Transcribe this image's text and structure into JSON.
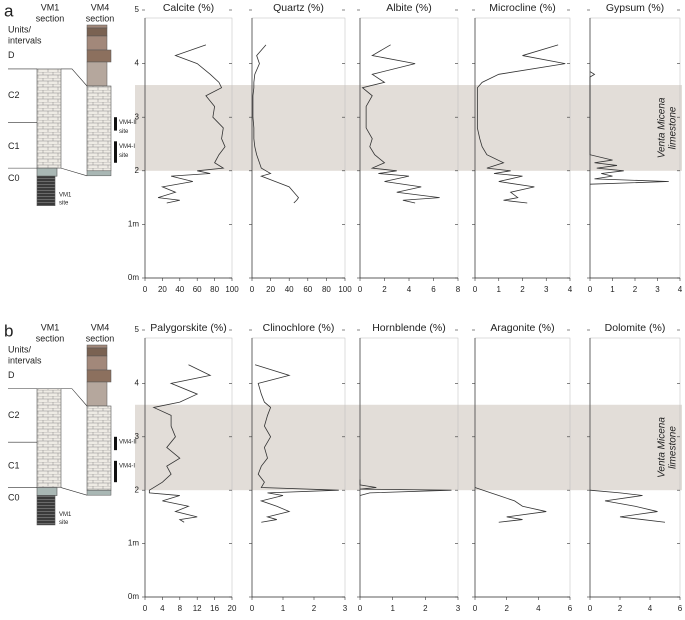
{
  "panels": [
    {
      "letter": "a",
      "sections": [
        [
          "VM1",
          "section"
        ],
        [
          "VM4",
          "section"
        ]
      ],
      "units_label": [
        "Units/",
        "intervals"
      ],
      "units": [
        "D",
        "C2",
        "C1",
        "C0"
      ],
      "sites": [
        [
          "VM4-II",
          "site"
        ],
        [
          "VM4-I",
          "site"
        ],
        [
          "VM1",
          "site"
        ]
      ],
      "shaded_ylim": [
        2.0,
        3.6
      ],
      "annotation": [
        "Venta Micena",
        "limestone"
      ]
    },
    {
      "letter": "b",
      "sections": [
        [
          "VM1",
          "section"
        ],
        [
          "VM4",
          "section"
        ]
      ],
      "units_label": [
        "Units/",
        "intervals"
      ],
      "units": [
        "D",
        "C2",
        "C1",
        "C0"
      ],
      "sites": [
        [
          "VM4-II"
        ],
        [
          "VM4-I"
        ],
        [
          "VM1",
          "site"
        ]
      ],
      "shaded_ylim": [
        2.0,
        3.6
      ],
      "annotation": [
        "Venta Micena",
        "limestone"
      ]
    }
  ],
  "chart_data": [
    {
      "type": "line",
      "title": "Calcite (%)",
      "color": "#333333",
      "xlim": [
        0,
        100
      ],
      "xticks": [
        0,
        20,
        40,
        60,
        80,
        100
      ],
      "ylim": [
        0,
        5
      ],
      "yticks": [
        {
          "value": 0,
          "label": "0m"
        },
        {
          "value": 1,
          "label": "1m"
        },
        2,
        3,
        4,
        5
      ],
      "y": [
        4.35,
        4.15,
        4.0,
        3.8,
        3.65,
        3.55,
        3.4,
        3.2,
        3.0,
        2.8,
        2.6,
        2.45,
        2.3,
        2.15,
        2.05,
        2.0,
        1.95,
        1.9,
        1.8,
        1.7,
        1.6,
        1.5,
        1.45,
        1.4
      ],
      "x": [
        70,
        35,
        60,
        75,
        85,
        88,
        70,
        80,
        78,
        90,
        88,
        92,
        85,
        80,
        90,
        60,
        75,
        30,
        55,
        20,
        35,
        15,
        40,
        25
      ]
    },
    {
      "type": "line",
      "title": "Quartz (%)",
      "color": "#333333",
      "xlim": [
        0,
        100
      ],
      "xticks": [
        0,
        20,
        40,
        60,
        80,
        100
      ],
      "ylim": [
        0,
        5
      ],
      "yticks": [
        {
          "value": 0,
          "label": "0m"
        },
        {
          "value": 1,
          "label": "1m"
        },
        2,
        3,
        4,
        5
      ],
      "y": [
        4.35,
        4.15,
        4.0,
        3.8,
        3.65,
        3.55,
        3.4,
        3.2,
        3.0,
        2.8,
        2.6,
        2.45,
        2.3,
        2.15,
        2.05,
        2.0,
        1.95,
        1.9,
        1.8,
        1.7,
        1.6,
        1.5,
        1.45,
        1.4
      ],
      "x": [
        15,
        5,
        8,
        3,
        2,
        2,
        1,
        1,
        1,
        2,
        2,
        3,
        5,
        8,
        10,
        15,
        20,
        10,
        25,
        40,
        45,
        50,
        48,
        45
      ]
    },
    {
      "type": "line",
      "title": "Albite (%)",
      "color": "#333333",
      "xlim": [
        0,
        8
      ],
      "xticks": [
        0,
        2,
        4,
        6,
        8
      ],
      "ylim": [
        0,
        5
      ],
      "yticks": [
        {
          "value": 0,
          "label": "0m"
        },
        {
          "value": 1,
          "label": "1m"
        },
        2,
        3,
        4,
        5
      ],
      "y": [
        4.35,
        4.15,
        4.0,
        3.8,
        3.65,
        3.55,
        3.4,
        3.2,
        3.0,
        2.8,
        2.6,
        2.45,
        2.3,
        2.15,
        2.05,
        2.0,
        1.95,
        1.9,
        1.8,
        1.7,
        1.6,
        1.5,
        1.45,
        1.4
      ],
      "x": [
        2.5,
        1,
        4.5,
        1,
        2,
        0.2,
        1,
        0.5,
        0.5,
        0.5,
        1,
        0.8,
        1.2,
        2,
        1,
        3,
        1.5,
        4,
        2,
        5,
        3,
        6.5,
        3.5,
        4.5
      ]
    },
    {
      "type": "line",
      "title": "Microcline (%)",
      "color": "#333333",
      "xlim": [
        0,
        4
      ],
      "xticks": [
        0,
        1,
        2,
        3,
        4
      ],
      "ylim": [
        0,
        5
      ],
      "yticks": [
        {
          "value": 0,
          "label": "0m"
        },
        {
          "value": 1,
          "label": "1m"
        },
        2,
        3,
        4,
        5
      ],
      "y": [
        4.35,
        4.15,
        4.0,
        3.8,
        3.65,
        3.55,
        3.4,
        3.2,
        3.0,
        2.8,
        2.6,
        2.45,
        2.3,
        2.15,
        2.05,
        2.0,
        1.95,
        1.9,
        1.8,
        1.7,
        1.6,
        1.5,
        1.45,
        1.4
      ],
      "x": [
        3.5,
        2,
        3.8,
        1,
        0.3,
        0.1,
        0.1,
        0.1,
        0.1,
        0.1,
        0.2,
        0.3,
        0.5,
        1.2,
        0.5,
        1.5,
        0.8,
        2,
        1,
        2.5,
        1.5,
        1.8,
        1.2,
        2.2
      ]
    },
    {
      "type": "line",
      "title": "Gypsum (%)",
      "color": "#333333",
      "xlim": [
        0,
        4
      ],
      "xticks": [
        0,
        1,
        2,
        3,
        4
      ],
      "ylim": [
        0,
        5
      ],
      "yticks": [
        {
          "value": 0,
          "label": "0m"
        },
        {
          "value": 1,
          "label": "1m"
        },
        2,
        3,
        4,
        5
      ],
      "y": [
        3.85,
        3.8,
        3.75,
        2.3,
        2.2,
        2.15,
        2.1,
        2.05,
        2.0,
        1.95,
        1.9,
        1.85,
        1.8,
        1.75
      ],
      "x": [
        0,
        0.2,
        0,
        0,
        1,
        0.2,
        1.2,
        0.3,
        1.5,
        0.5,
        1,
        0.2,
        3.5,
        0
      ]
    },
    {
      "type": "line",
      "title": "Palygorskite (%)",
      "color": "#333333",
      "xlim": [
        0,
        20
      ],
      "xticks": [
        0,
        4,
        8,
        12,
        16,
        20
      ],
      "ylim": [
        0,
        5
      ],
      "yticks": [
        {
          "value": 0,
          "label": "0m"
        },
        {
          "value": 1,
          "label": "1m"
        },
        2,
        3,
        4,
        5
      ],
      "y": [
        4.35,
        4.15,
        4.0,
        3.8,
        3.65,
        3.55,
        3.4,
        3.2,
        3.0,
        2.8,
        2.6,
        2.45,
        2.3,
        2.15,
        2.05,
        2.0,
        1.95,
        1.9,
        1.8,
        1.7,
        1.6,
        1.5,
        1.45,
        1.4
      ],
      "x": [
        10,
        15,
        6,
        12,
        8,
        2,
        6,
        6,
        7,
        5,
        8,
        5,
        6,
        4,
        2,
        1,
        1,
        8,
        4,
        10,
        7,
        12,
        8,
        9
      ]
    },
    {
      "type": "line",
      "title": "Clinochlore (%)",
      "color": "#333333",
      "xlim": [
        0,
        3
      ],
      "xticks": [
        0,
        1,
        2,
        3
      ],
      "ylim": [
        0,
        5
      ],
      "yticks": [
        {
          "value": 0,
          "label": "0m"
        },
        {
          "value": 1,
          "label": "1m"
        },
        2,
        3,
        4,
        5
      ],
      "y": [
        4.35,
        4.15,
        4.0,
        3.8,
        3.65,
        3.55,
        3.4,
        3.2,
        3.0,
        2.8,
        2.6,
        2.45,
        2.3,
        2.15,
        2.05,
        2.0,
        1.95,
        1.9,
        1.8,
        1.7,
        1.6,
        1.5,
        1.45,
        1.4
      ],
      "x": [
        0.1,
        1.2,
        0.2,
        0.3,
        0.4,
        0.6,
        0.5,
        0.4,
        0.6,
        0.4,
        0.5,
        0.3,
        0.2,
        0.4,
        0.3,
        2.8,
        0.5,
        1,
        0.3,
        0.8,
        1.2,
        0.5,
        0.8,
        0.3
      ]
    },
    {
      "type": "line",
      "title": "Hornblende (%)",
      "color": "#333333",
      "xlim": [
        0,
        3
      ],
      "xticks": [
        0,
        1,
        2,
        3
      ],
      "ylim": [
        0,
        5
      ],
      "yticks": [
        {
          "value": 0,
          "label": "0m"
        },
        {
          "value": 1,
          "label": "1m"
        },
        2,
        3,
        4,
        5
      ],
      "y": [
        2.2,
        2.1,
        2.05,
        2.02,
        2.0,
        1.95,
        1.9
      ],
      "x": [
        0,
        0,
        0.5,
        0,
        2.8,
        0.3,
        0
      ]
    },
    {
      "type": "line",
      "title": "Aragonite (%)",
      "color": "#333333",
      "xlim": [
        0,
        6
      ],
      "xticks": [
        0,
        2,
        4,
        6
      ],
      "ylim": [
        0,
        5
      ],
      "yticks": [
        {
          "value": 0,
          "label": "0m"
        },
        {
          "value": 1,
          "label": "1m"
        },
        2,
        3,
        4,
        5
      ],
      "y": [
        2.05,
        1.95,
        1.9,
        1.8,
        1.7,
        1.6,
        1.5,
        1.45,
        1.4
      ],
      "x": [
        0,
        1,
        1.5,
        2.5,
        3,
        4.5,
        2,
        3,
        1.5
      ]
    },
    {
      "type": "line",
      "title": "Dolomite (%)",
      "color": "#333333",
      "xlim": [
        0,
        6
      ],
      "xticks": [
        0,
        2,
        4,
        6
      ],
      "ylim": [
        0,
        5
      ],
      "yticks": [
        {
          "value": 0,
          "label": "0m"
        },
        {
          "value": 1,
          "label": "1m"
        },
        2,
        3,
        4,
        5
      ],
      "y": [
        2.0,
        1.95,
        1.9,
        1.8,
        1.7,
        1.6,
        1.5,
        1.45,
        1.4
      ],
      "x": [
        0,
        2,
        3.5,
        1,
        3,
        4.5,
        2,
        3.5,
        5
      ]
    }
  ]
}
